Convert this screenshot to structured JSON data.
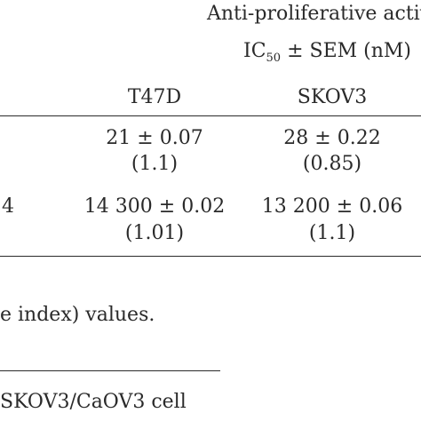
{
  "header": {
    "group_title": "Anti-proliferative activ",
    "metric_prefix": "IC",
    "metric_sub": "50",
    "metric_suffix": " ± SEM (nM)",
    "columns": [
      "T47D",
      "SKOV3"
    ]
  },
  "rows": [
    {
      "label": "",
      "t47d_value": "21 ± 0.07",
      "t47d_index": "(1.1)",
      "skov3_value": "28 ± 0.22",
      "skov3_index": "(0.85)"
    },
    {
      "label": "4",
      "t47d_value": "14 300 ± 0.02",
      "t47d_index": "(1.01)",
      "skov3_value": "13 200 ± 0.06",
      "skov3_index": "(1.1)"
    }
  ],
  "footnotes": {
    "note": "e index) values.",
    "note2": "SKOV3/CaOV3 cell"
  }
}
